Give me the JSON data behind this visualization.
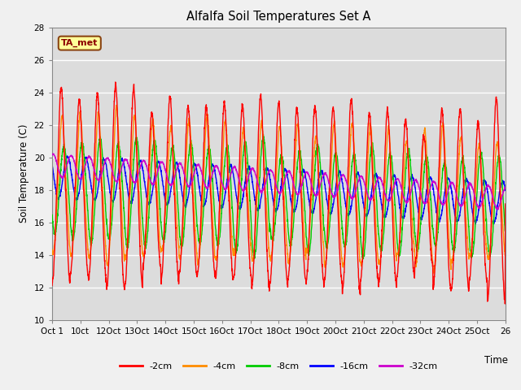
{
  "title": "Alfalfa Soil Temperatures Set A",
  "ylabel": "Soil Temperature (C)",
  "xlabel": "Time",
  "annotation": "TA_met",
  "ylim": [
    10,
    28
  ],
  "yticks": [
    10,
    12,
    14,
    16,
    18,
    20,
    22,
    24,
    26,
    28
  ],
  "colors": {
    "-2cm": "#ff0000",
    "-4cm": "#ff8c00",
    "-8cm": "#00cc00",
    "-16cm": "#0000ff",
    "-32cm": "#cc00cc"
  },
  "legend_labels": [
    "-2cm",
    "-4cm",
    "-8cm",
    "-16cm",
    "-32cm"
  ],
  "tick_labels": [
    "Oct 1",
    "10ct",
    "12Oct",
    "13Oct",
    "14Oct",
    "15Oct",
    "16Oct",
    "17Oct",
    "18Oct",
    "19Oct",
    "20Oct",
    "21Oct",
    "22Oct",
    "23Oct",
    "24Oct",
    "25Oct",
    "26"
  ],
  "n_points": 2600,
  "n_days": 25
}
